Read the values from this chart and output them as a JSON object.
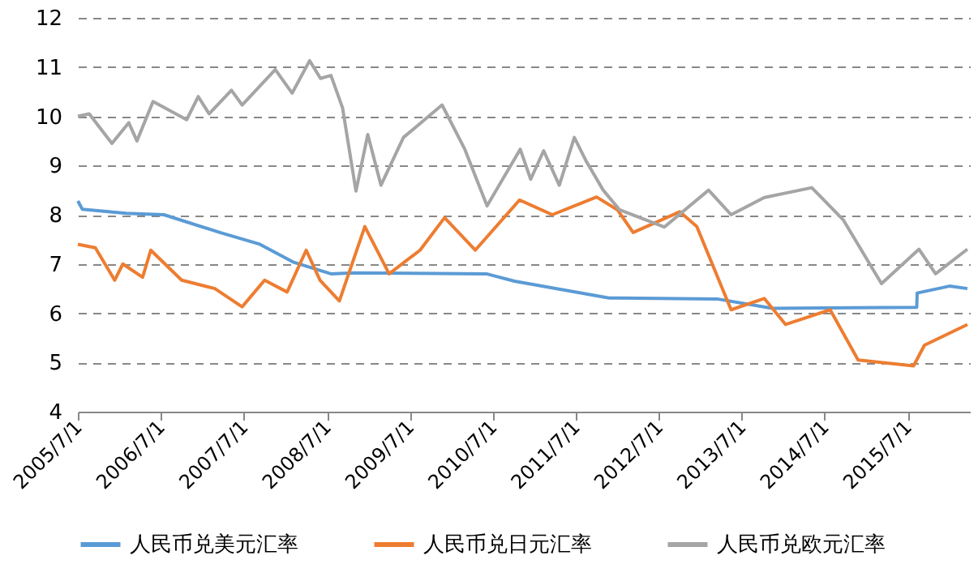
{
  "chart_data": {
    "type": "line",
    "xlim": [
      "2005-07-01",
      "2016-03-31"
    ],
    "xticks": [
      {
        "value": "2005-07-01",
        "label": "2005/7/1"
      },
      {
        "value": "2006-07-01",
        "label": "2006/7/1"
      },
      {
        "value": "2007-07-01",
        "label": "2007/7/1"
      },
      {
        "value": "2008-07-01",
        "label": "2008/7/1"
      },
      {
        "value": "2009-07-01",
        "label": "2009/7/1"
      },
      {
        "value": "2010-07-01",
        "label": "2010/7/1"
      },
      {
        "value": "2011-07-01",
        "label": "2011/7/1"
      },
      {
        "value": "2012-07-01",
        "label": "2012/7/1"
      },
      {
        "value": "2013-07-01",
        "label": "2013/7/1"
      },
      {
        "value": "2014-07-01",
        "label": "2014/7/1"
      },
      {
        "value": "2015-07-01",
        "label": "2015/7/1"
      }
    ],
    "ylim": [
      4,
      12
    ],
    "yticks": [
      4,
      5,
      6,
      7,
      8,
      9,
      10,
      11,
      12
    ],
    "grid": "y",
    "legend": "bottom",
    "line_style": "solid",
    "series": [
      {
        "name": "人民币兑美元汇率",
        "color": "#5b9bd5",
        "x": [
          "2005-07-01",
          "2005-07-21",
          "2006-01-30",
          "2006-07-15",
          "2007-03-18",
          "2007-09-10",
          "2008-02-03",
          "2008-07-19",
          "2008-10-25",
          "2010-06-03",
          "2010-10-05",
          "2011-11-25",
          "2013-03-14",
          "2013-11-13",
          "2015-08-10",
          "2015-08-12",
          "2016-01-01",
          "2016-03-20"
        ],
        "values": [
          8.28,
          8.11,
          8.03,
          8.0,
          7.64,
          7.4,
          7.04,
          6.8,
          6.82,
          6.8,
          6.65,
          6.31,
          6.29,
          6.1,
          6.12,
          6.41,
          6.55,
          6.5
        ]
      },
      {
        "name": "人民币兑日元汇率",
        "color": "#ed7d31",
        "x": [
          "2005-07-01",
          "2005-09-16",
          "2005-12-10",
          "2006-01-15",
          "2006-04-12",
          "2006-05-18",
          "2006-10-01",
          "2007-02-24",
          "2007-06-24",
          "2007-10-01",
          "2008-01-08",
          "2008-04-01",
          "2008-06-01",
          "2008-08-25",
          "2008-12-15",
          "2009-04-01",
          "2009-08-15",
          "2009-12-01",
          "2010-04-15",
          "2010-10-27",
          "2011-03-20",
          "2011-10-01",
          "2012-01-01",
          "2012-03-10",
          "2012-10-01",
          "2012-12-15",
          "2013-05-15",
          "2013-10-08",
          "2014-01-10",
          "2014-07-25",
          "2014-11-25",
          "2015-07-27",
          "2015-09-13",
          "2016-03-20"
        ],
        "values": [
          7.4,
          7.33,
          6.67,
          7.0,
          6.73,
          7.28,
          6.67,
          6.5,
          6.13,
          6.67,
          6.43,
          7.28,
          6.67,
          6.25,
          7.76,
          6.8,
          7.28,
          7.94,
          7.28,
          8.3,
          8.0,
          8.36,
          8.1,
          7.64,
          8.06,
          7.76,
          6.07,
          6.3,
          5.77,
          6.07,
          5.05,
          4.93,
          5.35,
          5.77
        ]
      },
      {
        "name": "人民币兑欧元汇率",
        "color": "#a5a5a5",
        "x": [
          "2005-07-01",
          "2005-08-20",
          "2005-11-28",
          "2006-02-10",
          "2006-03-18",
          "2006-05-28",
          "2006-10-23",
          "2006-12-13",
          "2007-01-30",
          "2007-05-08",
          "2007-06-24",
          "2007-11-17",
          "2008-01-30",
          "2008-04-16",
          "2008-06-03",
          "2008-07-19",
          "2008-09-08",
          "2008-11-06",
          "2008-12-28",
          "2009-02-24",
          "2009-06-03",
          "2009-11-20",
          "2010-02-28",
          "2010-06-06",
          "2010-10-30",
          "2010-12-15",
          "2011-02-10",
          "2011-04-20",
          "2011-06-25",
          "2011-08-15",
          "2011-10-30",
          "2012-01-10",
          "2012-07-25",
          "2013-02-05",
          "2013-05-15",
          "2013-10-08",
          "2014-05-05",
          "2014-09-20",
          "2015-03-08",
          "2015-08-20",
          "2015-11-01",
          "2016-03-20"
        ],
        "values": [
          10.0,
          10.05,
          9.45,
          9.87,
          9.5,
          10.3,
          9.93,
          10.4,
          10.05,
          10.53,
          10.23,
          10.95,
          10.47,
          11.13,
          10.77,
          10.83,
          10.17,
          8.48,
          9.63,
          8.6,
          9.57,
          10.23,
          9.33,
          8.18,
          9.33,
          8.72,
          9.3,
          8.6,
          9.57,
          9.1,
          8.5,
          8.1,
          7.75,
          8.5,
          8.0,
          8.35,
          8.55,
          7.9,
          6.6,
          7.3,
          6.8,
          7.3
        ]
      }
    ]
  }
}
